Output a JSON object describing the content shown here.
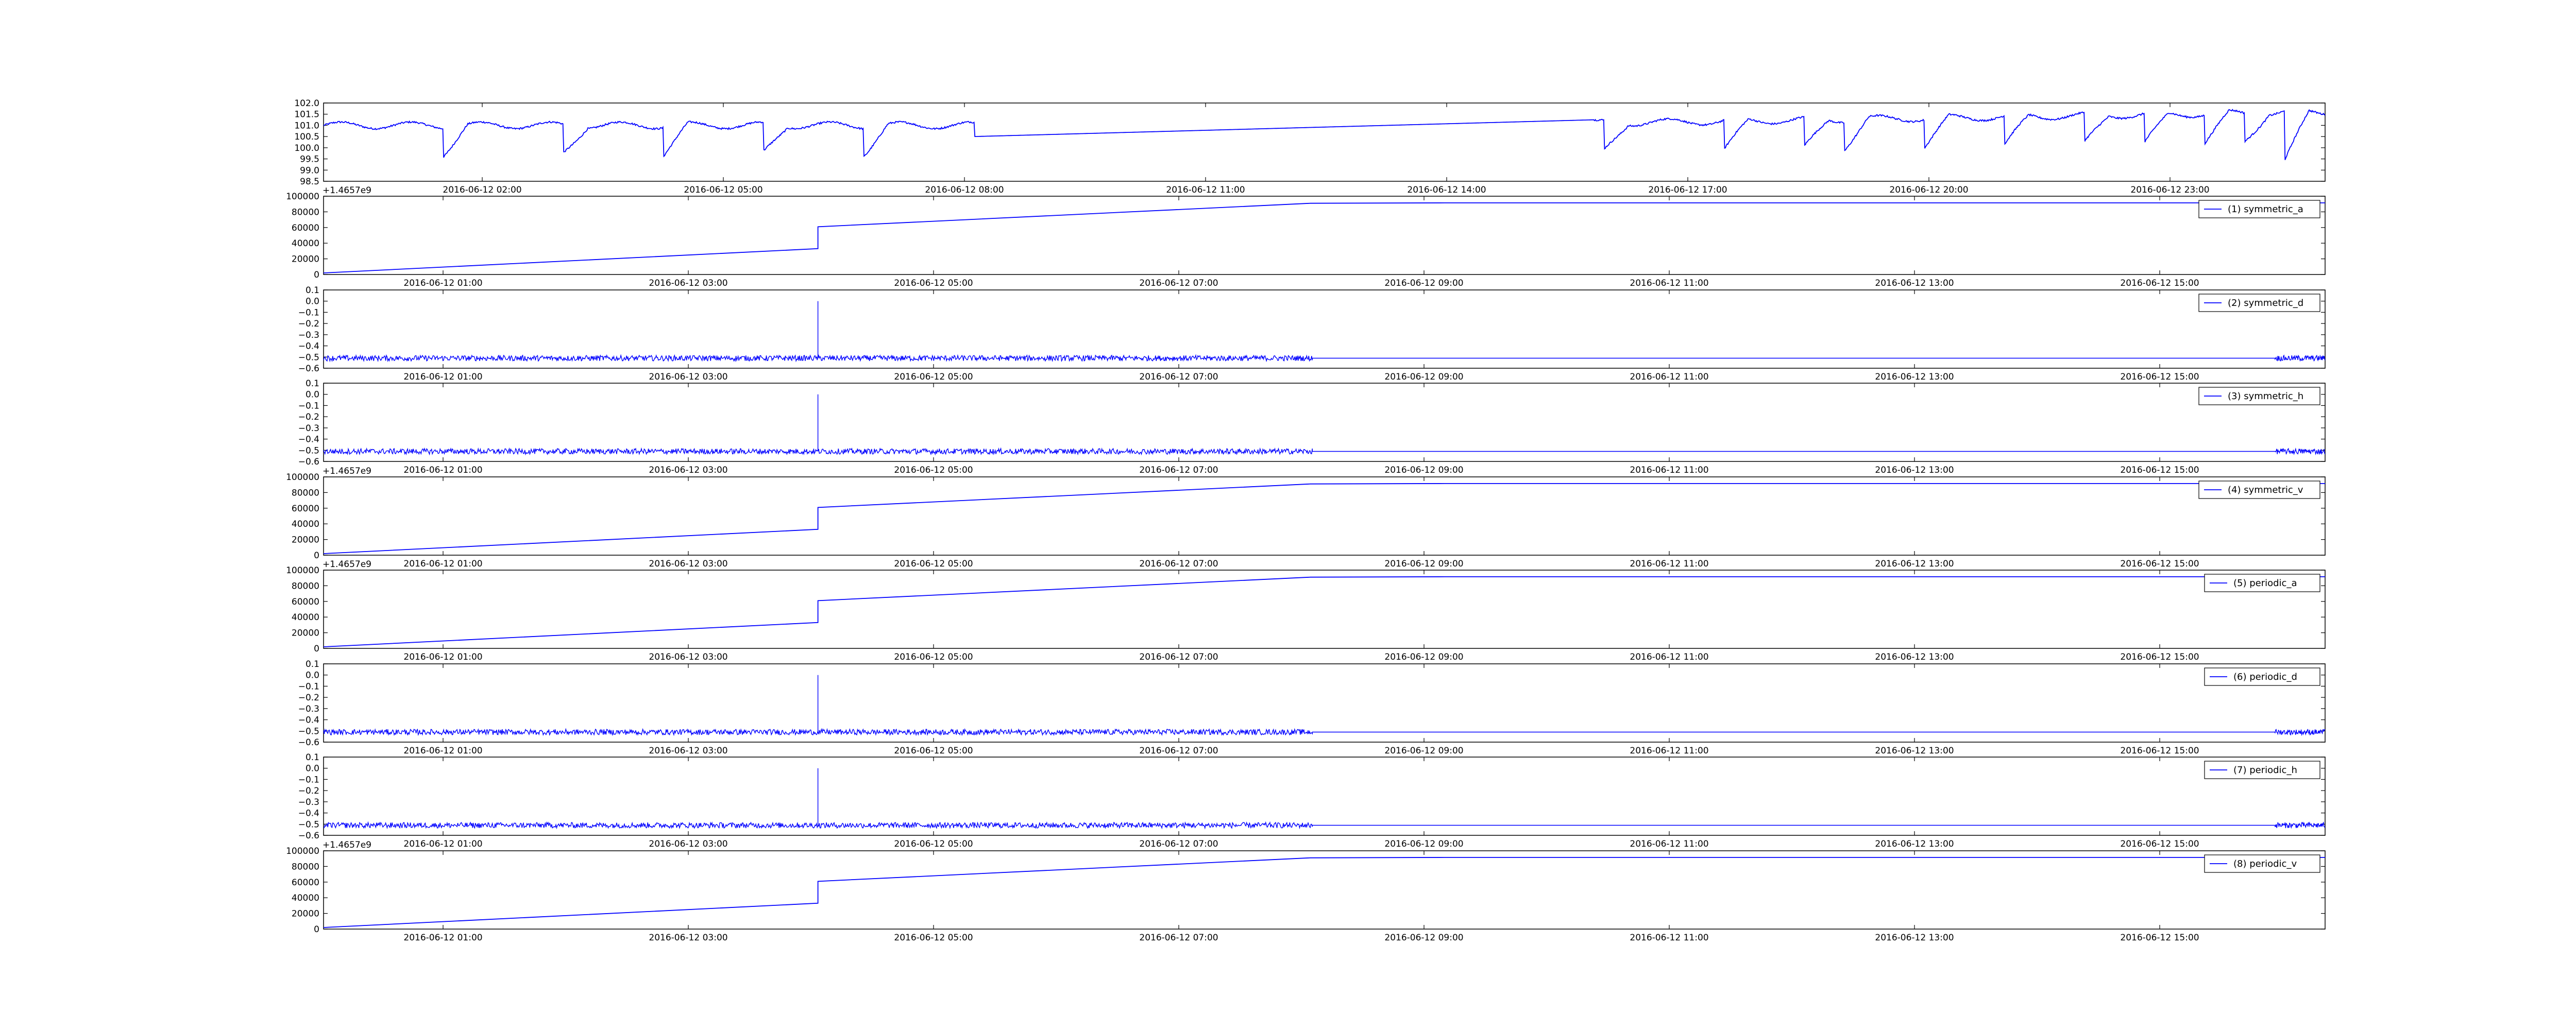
{
  "chart_data": [
    {
      "type": "line",
      "kind": "base",
      "color": "#0000ff",
      "ylim": [
        98.5,
        102.0
      ],
      "yticks": [
        "102.0",
        "101.5",
        "101.0",
        "100.5",
        "100.0",
        "99.5",
        "99.0",
        "98.5"
      ],
      "xticks": [
        "2016-06-12 02:00",
        "2016-06-12 05:00",
        "2016-06-12 08:00",
        "2016-06-12 11:00",
        "2016-06-12 14:00",
        "2016-06-12 17:00",
        "2016-06-12 20:00",
        "2016-06-12 23:00"
      ],
      "legend": ""
    },
    {
      "type": "line",
      "kind": "ramp",
      "color": "#0000ff",
      "ylim": [
        0,
        100000
      ],
      "yticks": [
        "100000",
        "80000",
        "60000",
        "40000",
        "20000",
        "0"
      ],
      "yoffset": "+1.4657e9",
      "xticks": [
        "2016-06-12 01:00",
        "2016-06-12 03:00",
        "2016-06-12 05:00",
        "2016-06-12 07:00",
        "2016-06-12 09:00",
        "2016-06-12 11:00",
        "2016-06-12 13:00",
        "2016-06-12 15:00"
      ],
      "legend": "(1) symmetric_a"
    },
    {
      "type": "line",
      "kind": "noise",
      "color": "#0000ff",
      "ylim": [
        -0.6,
        0.1
      ],
      "yticks": [
        "0.1",
        "0.0",
        "−0.1",
        "−0.2",
        "−0.3",
        "−0.4",
        "−0.5",
        "−0.6"
      ],
      "xticks": [
        "2016-06-12 01:00",
        "2016-06-12 03:00",
        "2016-06-12 05:00",
        "2016-06-12 07:00",
        "2016-06-12 09:00",
        "2016-06-12 11:00",
        "2016-06-12 13:00",
        "2016-06-12 15:00"
      ],
      "legend": "(2) symmetric_d"
    },
    {
      "type": "line",
      "kind": "noise",
      "color": "#0000ff",
      "ylim": [
        -0.6,
        0.1
      ],
      "yticks": [
        "0.1",
        "0.0",
        "−0.1",
        "−0.2",
        "−0.3",
        "−0.4",
        "−0.5",
        "−0.6"
      ],
      "xticks": [
        "2016-06-12 01:00",
        "2016-06-12 03:00",
        "2016-06-12 05:00",
        "2016-06-12 07:00",
        "2016-06-12 09:00",
        "2016-06-12 11:00",
        "2016-06-12 13:00",
        "2016-06-12 15:00"
      ],
      "legend": "(3) symmetric_h"
    },
    {
      "type": "line",
      "kind": "ramp",
      "color": "#0000ff",
      "ylim": [
        0,
        100000
      ],
      "yticks": [
        "100000",
        "80000",
        "60000",
        "40000",
        "20000",
        "0"
      ],
      "yoffset": "+1.4657e9",
      "xticks": [
        "2016-06-12 01:00",
        "2016-06-12 03:00",
        "2016-06-12 05:00",
        "2016-06-12 07:00",
        "2016-06-12 09:00",
        "2016-06-12 11:00",
        "2016-06-12 13:00",
        "2016-06-12 15:00"
      ],
      "legend": "(4) symmetric_v"
    },
    {
      "type": "line",
      "kind": "ramp",
      "color": "#0000ff",
      "ylim": [
        0,
        100000
      ],
      "yticks": [
        "100000",
        "80000",
        "60000",
        "40000",
        "20000",
        "0"
      ],
      "yoffset": "+1.4657e9",
      "xticks": [
        "2016-06-12 01:00",
        "2016-06-12 03:00",
        "2016-06-12 05:00",
        "2016-06-12 07:00",
        "2016-06-12 09:00",
        "2016-06-12 11:00",
        "2016-06-12 13:00",
        "2016-06-12 15:00"
      ],
      "legend": "(5) periodic_a"
    },
    {
      "type": "line",
      "kind": "noise",
      "color": "#0000ff",
      "ylim": [
        -0.6,
        0.1
      ],
      "yticks": [
        "0.1",
        "0.0",
        "−0.1",
        "−0.2",
        "−0.3",
        "−0.4",
        "−0.5",
        "−0.6"
      ],
      "xticks": [
        "2016-06-12 01:00",
        "2016-06-12 03:00",
        "2016-06-12 05:00",
        "2016-06-12 07:00",
        "2016-06-12 09:00",
        "2016-06-12 11:00",
        "2016-06-12 13:00",
        "2016-06-12 15:00"
      ],
      "legend": "(6) periodic_d"
    },
    {
      "type": "line",
      "kind": "noise",
      "color": "#0000ff",
      "ylim": [
        -0.6,
        0.1
      ],
      "yticks": [
        "0.1",
        "0.0",
        "−0.1",
        "−0.2",
        "−0.3",
        "−0.4",
        "−0.5",
        "−0.6"
      ],
      "xticks": [
        "2016-06-12 01:00",
        "2016-06-12 03:00",
        "2016-06-12 05:00",
        "2016-06-12 07:00",
        "2016-06-12 09:00",
        "2016-06-12 11:00",
        "2016-06-12 13:00",
        "2016-06-12 15:00"
      ],
      "legend": "(7) periodic_h"
    },
    {
      "type": "line",
      "kind": "ramp",
      "color": "#0000ff",
      "ylim": [
        0,
        100000
      ],
      "yticks": [
        "100000",
        "80000",
        "60000",
        "40000",
        "20000",
        "0"
      ],
      "yoffset": "+1.4657e9",
      "xticks": [
        "2016-06-12 01:00",
        "2016-06-12 03:00",
        "2016-06-12 05:00",
        "2016-06-12 07:00",
        "2016-06-12 09:00",
        "2016-06-12 11:00",
        "2016-06-12 13:00",
        "2016-06-12 15:00"
      ],
      "legend": "(8) periodic_v"
    }
  ]
}
